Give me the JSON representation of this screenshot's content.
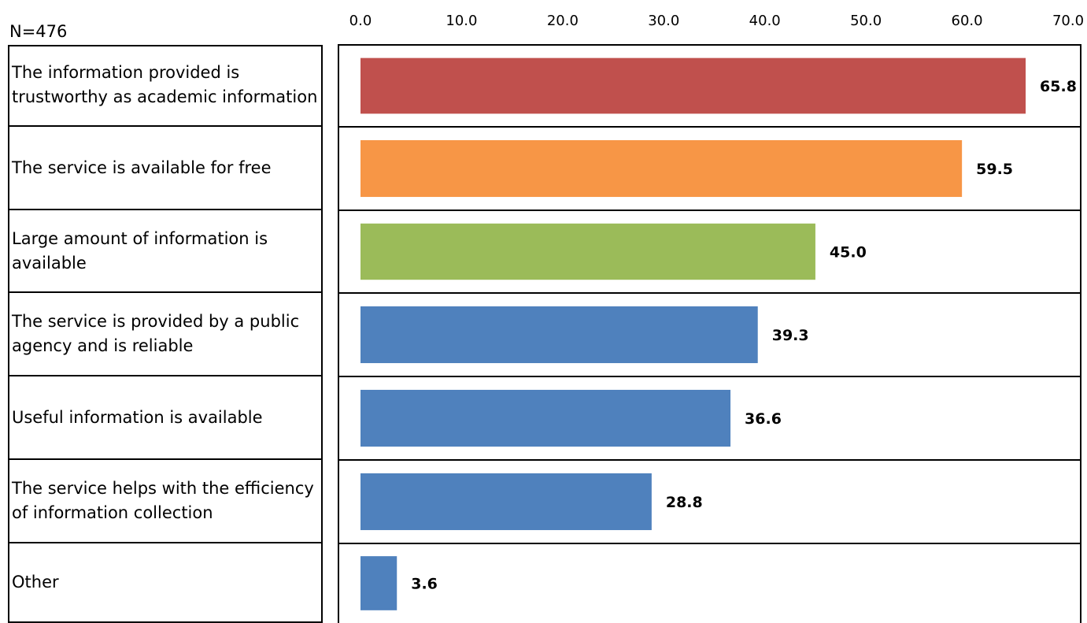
{
  "note": "N=476",
  "chart_data": {
    "type": "bar",
    "orientation": "horizontal",
    "categories": [
      "The information provided is trustworthy as academic information",
      "The service is available for free",
      "Large amount of information is available",
      "The service is provided by a public agency and is reliable",
      "Useful information is available",
      "The service helps with the efficiency of information collection",
      "Other"
    ],
    "values": [
      65.8,
      59.5,
      45.0,
      39.3,
      36.6,
      28.8,
      3.6
    ],
    "value_labels": [
      "65.8",
      "59.5",
      "45.0",
      "39.3",
      "36.6",
      "28.8",
      "3.6"
    ],
    "colors": [
      "#c0504d",
      "#f79646",
      "#9bbb59",
      "#4f81bd",
      "#4f81bd",
      "#4f81bd",
      "#4f81bd"
    ],
    "xlim": [
      0,
      70
    ],
    "ticks": [
      "0.0",
      "10.0",
      "20.0",
      "30.0",
      "40.0",
      "50.0",
      "60.0",
      "70.0"
    ],
    "axis_position": "top",
    "grid": false,
    "title": "",
    "xlabel": "",
    "ylabel": ""
  }
}
